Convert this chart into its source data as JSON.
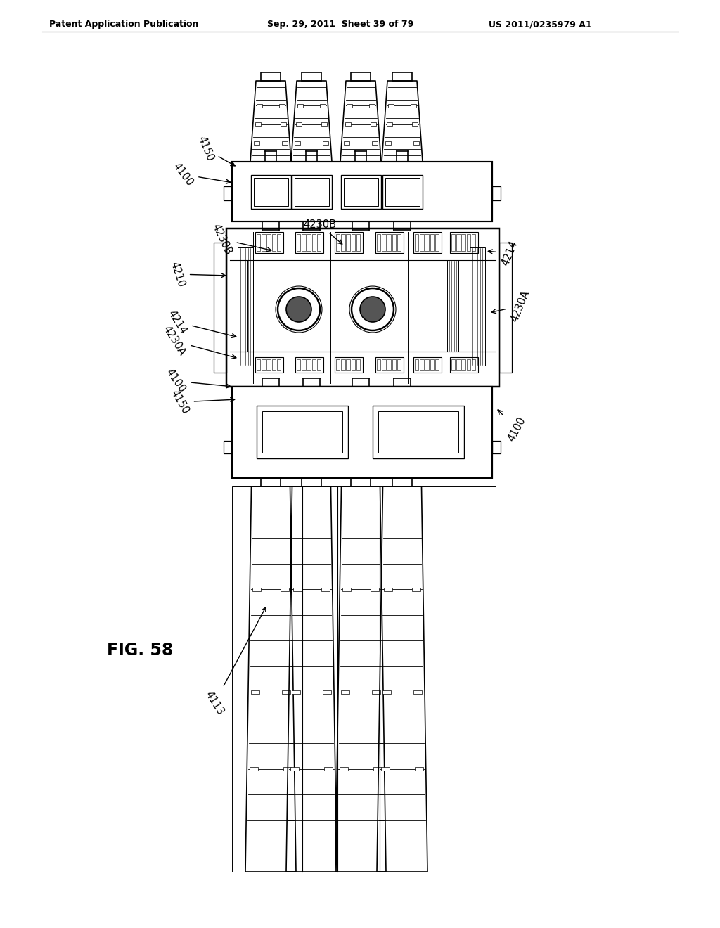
{
  "background_color": "#ffffff",
  "header_left": "Patent Application Publication",
  "header_mid": "Sep. 29, 2011  Sheet 39 of 79",
  "header_right": "US 2011/0235979 A1",
  "fig_label": "FIG. 58",
  "line_color": "#000000",
  "line_width": 1.2
}
